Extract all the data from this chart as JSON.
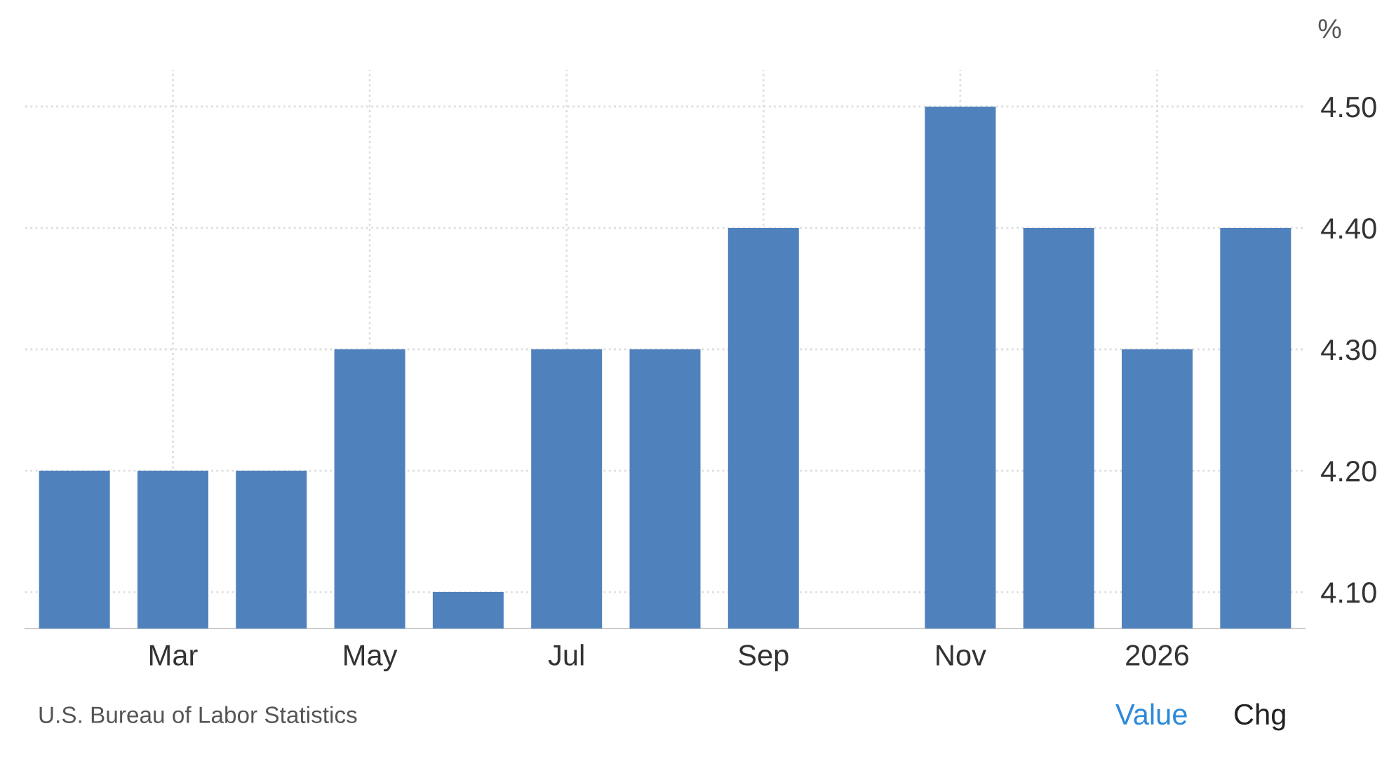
{
  "chart_data": {
    "type": "bar",
    "ylabel": "%",
    "categories": [
      null,
      "Mar",
      null,
      "May",
      null,
      "Jul",
      null,
      "Sep",
      null,
      "Nov",
      null,
      "2026",
      null
    ],
    "values": [
      4.2,
      4.2,
      4.2,
      4.3,
      4.1,
      4.3,
      4.3,
      4.4,
      null,
      4.5,
      4.4,
      4.3,
      4.4
    ],
    "color": "#4f81bd",
    "ylim": [
      4.07,
      4.53
    ],
    "yticks": [
      {
        "value": 4.1,
        "label": "4.10"
      },
      {
        "value": 4.2,
        "label": "4.20"
      },
      {
        "value": 4.3,
        "label": "4.30"
      },
      {
        "value": 4.4,
        "label": "4.40"
      },
      {
        "value": 4.5,
        "label": "4.50"
      }
    ],
    "grid": true,
    "annotations": [
      "U.S. Bureau of Labor Statistics",
      "Value",
      "Chg"
    ]
  }
}
